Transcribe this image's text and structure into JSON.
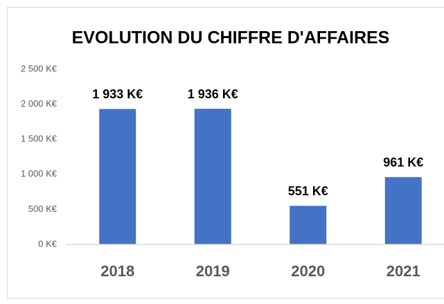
{
  "chart_data": {
    "type": "bar",
    "title": "EVOLUTION DU CHIFFRE D'AFFAIRES",
    "categories": [
      "2018",
      "2019",
      "2020",
      "2021"
    ],
    "values": [
      1933,
      1936,
      551,
      961
    ],
    "value_labels": [
      "1 933 K€",
      "1 936 K€",
      "551 K€",
      "961 K€"
    ],
    "color": "#4472c4",
    "ylim": [
      0,
      2500
    ],
    "yticks": [
      {
        "value": 0,
        "label": "0 K€"
      },
      {
        "value": 500,
        "label": "500 K€"
      },
      {
        "value": 1000,
        "label": "1 000 K€"
      },
      {
        "value": 1500,
        "label": "1 500 K€"
      },
      {
        "value": 2000,
        "label": "2 000 K€"
      },
      {
        "value": 2500,
        "label": "2 500 K€"
      }
    ],
    "grid": false
  }
}
